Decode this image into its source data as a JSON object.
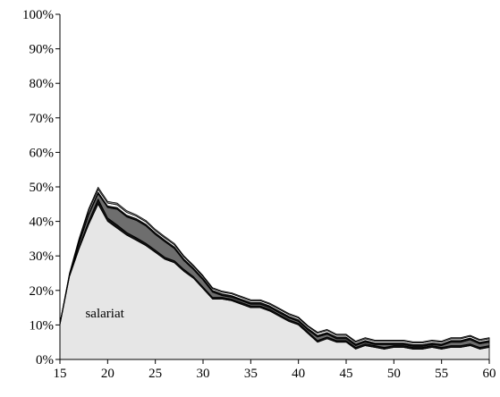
{
  "chart_data": {
    "type": "area",
    "stacked": true,
    "title": "",
    "xlabel": "",
    "ylabel": "",
    "xlim": [
      15,
      60
    ],
    "ylim": [
      0,
      100
    ],
    "x_ticks": [
      15,
      20,
      25,
      30,
      35,
      40,
      45,
      50,
      55,
      60
    ],
    "y_ticks": [
      0,
      10,
      20,
      30,
      40,
      50,
      60,
      70,
      80,
      90,
      100
    ],
    "y_tick_labels": [
      "0%",
      "10%",
      "20%",
      "30%",
      "40%",
      "50%",
      "60%",
      "70%",
      "80%",
      "90%",
      "100%"
    ],
    "grid": false,
    "legend": "none",
    "x": [
      15,
      16,
      17,
      18,
      19,
      20,
      21,
      22,
      23,
      24,
      25,
      26,
      27,
      28,
      29,
      30,
      31,
      32,
      33,
      34,
      35,
      36,
      37,
      38,
      39,
      40,
      41,
      42,
      43,
      44,
      45,
      46,
      47,
      48,
      49,
      50,
      51,
      52,
      53,
      54,
      55,
      56,
      57,
      58,
      59,
      60
    ],
    "series": [
      {
        "name": "salariat",
        "color": "#e6e6e6",
        "values": [
          10,
          24,
          32,
          39,
          45,
          40,
          38,
          36,
          34.5,
          33,
          31,
          29,
          28,
          25.5,
          23.5,
          20.5,
          17.5,
          17.5,
          17,
          16,
          15,
          15,
          14,
          12.5,
          11,
          10,
          7.5,
          5,
          6,
          5,
          5,
          3,
          4,
          3.5,
          3,
          3.5,
          3.5,
          3,
          3,
          3.5,
          3,
          3.5,
          3.5,
          4,
          3,
          3.5
        ]
      },
      {
        "color": "#111111",
        "values": [
          0.5,
          0.3,
          0.5,
          1,
          1.5,
          1,
          1,
          0.8,
          0.8,
          0.7,
          0.7,
          0.6,
          0.6,
          0.6,
          0.5,
          0.5,
          0.5,
          0.5,
          0.5,
          0.5,
          0.5,
          0.5,
          0.5,
          0.5,
          0.5,
          0.5,
          0.5,
          0.5,
          0.5,
          0.5,
          0.5,
          0.5,
          0.5,
          0.5,
          0.5,
          0.5,
          0.5,
          0.5,
          0.5,
          0.5,
          0.5,
          0.5,
          0.5,
          0.5,
          0.5,
          0.5
        ]
      },
      {
        "color": "#6e6e6e",
        "values": [
          0,
          0,
          1,
          1.8,
          1.5,
          3,
          4.5,
          4.5,
          5,
          5,
          4.5,
          4.5,
          3.5,
          2.5,
          2,
          2,
          1.5,
          0.5,
          0.5,
          0.5,
          0.5,
          0.5,
          0.5,
          0.5,
          0.5,
          0.5,
          0.5,
          1,
          0.8,
          0.5,
          0.5,
          0.5,
          0.5,
          0.3,
          0.8,
          0.3,
          0.3,
          0.3,
          0.3,
          0.3,
          0.5,
          1,
          1,
          1.2,
          1,
          1
        ]
      },
      {
        "color": "#111111",
        "values": [
          0,
          0,
          0.3,
          0.4,
          0.5,
          0.5,
          0.5,
          0.5,
          0.5,
          0.5,
          0.5,
          0.5,
          0.5,
          0.5,
          0.5,
          0.5,
          0.5,
          0.5,
          0.5,
          0.5,
          0.5,
          0.5,
          0.5,
          0.5,
          0.5,
          0.5,
          0.5,
          0.5,
          0.5,
          0.5,
          0.5,
          0.5,
          0.5,
          0.5,
          0.5,
          0.5,
          0.5,
          0.5,
          0.5,
          0.5,
          0.5,
          0.5,
          0.5,
          0.5,
          0.5,
          0.5
        ]
      },
      {
        "color": "#ffffff",
        "values": [
          0,
          0.5,
          0.7,
          0.8,
          0.8,
          0.8,
          0.8,
          0.8,
          0.7,
          0.7,
          0.6,
          0.6,
          0.6,
          0.6,
          0.5,
          0.5,
          0.5,
          0.5,
          0.5,
          0.5,
          0.5,
          0.5,
          0.5,
          0.5,
          0.5,
          0.5,
          0.5,
          0.6,
          0.6,
          0.5,
          0.5,
          0.5,
          0.5,
          0.5,
          0.5,
          0.5,
          0.5,
          0.5,
          0.5,
          0.5,
          0.5,
          0.5,
          0.5,
          0.5,
          0.5,
          0.5
        ]
      },
      {
        "color": "#8c8c8c",
        "values": [
          0,
          0.2,
          0.5,
          0.6,
          0.6,
          0.5,
          0.5,
          0.5,
          0.4,
          0.4,
          0.4,
          0.4,
          0.4,
          0.3,
          0.3,
          0.3,
          0.3,
          0.3,
          0.3,
          0.3,
          0.3,
          0.3,
          0.3,
          0.3,
          0.3,
          0.3,
          0.3,
          0.3,
          0.3,
          0.3,
          0.3,
          0.3,
          0.3,
          0.3,
          0.3,
          0.3,
          0.3,
          0.3,
          0.3,
          0.3,
          0.3,
          0.3,
          0.3,
          0.3,
          0.3,
          0.3
        ]
      }
    ],
    "annotations": [
      {
        "text": "salariat",
        "x": 19.7,
        "y": 13.5
      }
    ]
  }
}
